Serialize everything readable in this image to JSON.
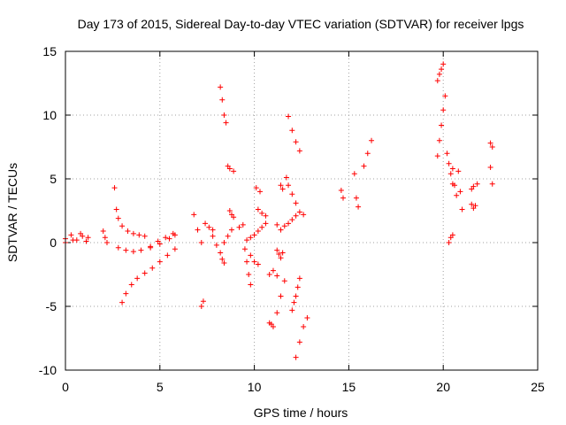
{
  "chart_data": {
    "type": "scatter",
    "title": "Day 173 of 2015, Sidereal Day-to-day VTEC variation (SDTVAR) for receiver lpgs",
    "xlabel": "GPS time / hours",
    "ylabel": "SDTVAR / TECUs",
    "xlim": [
      0,
      25
    ],
    "ylim": [
      -10,
      15
    ],
    "xticks": [
      0,
      5,
      10,
      15,
      20,
      25
    ],
    "yticks": [
      -10,
      -5,
      0,
      5,
      10,
      15
    ],
    "grid": true,
    "marker": "plus",
    "color": "#ff0000",
    "segments": [
      {
        "x": [
          0.0,
          0.3,
          0.6,
          0.9,
          1.2
        ],
        "y": [
          0.3,
          0.6,
          0.2,
          0.5,
          0.4
        ]
      },
      {
        "x": [
          0.0,
          0.4,
          0.8,
          1.1
        ],
        "y": [
          0.0,
          0.2,
          0.7,
          0.1
        ]
      },
      {
        "x": [
          2.0,
          2.1,
          2.2
        ],
        "y": [
          0.9,
          0.4,
          0.0
        ]
      },
      {
        "x": [
          2.6,
          2.7,
          2.8,
          3.0,
          3.3,
          3.6,
          3.9,
          4.2
        ],
        "y": [
          4.3,
          2.6,
          1.9,
          1.3,
          0.9,
          0.7,
          0.6,
          0.5
        ]
      },
      {
        "x": [
          2.8,
          3.2,
          3.6,
          4.0,
          4.5,
          5.0,
          5.5,
          5.8
        ],
        "y": [
          -0.4,
          -0.6,
          -0.7,
          -0.6,
          -0.4,
          -0.1,
          0.3,
          0.6
        ]
      },
      {
        "x": [
          3.0,
          3.2,
          3.5,
          3.8,
          4.2,
          4.6,
          5.0,
          5.4,
          5.8
        ],
        "y": [
          -4.7,
          -4.0,
          -3.3,
          -2.8,
          -2.4,
          -2.0,
          -1.5,
          -1.0,
          -0.5
        ]
      },
      {
        "x": [
          4.5,
          4.9,
          5.3,
          5.7
        ],
        "y": [
          -0.3,
          0.1,
          0.4,
          0.7
        ]
      },
      {
        "x": [
          6.8,
          7.0,
          7.2
        ],
        "y": [
          2.2,
          1.0,
          0.0
        ]
      },
      {
        "x": [
          7.2,
          7.3
        ],
        "y": [
          -5.0,
          -4.6
        ]
      },
      {
        "x": [
          7.4,
          7.6,
          7.8
        ],
        "y": [
          1.5,
          1.2,
          1.0
        ]
      },
      {
        "x": [
          7.8,
          8.0
        ],
        "y": [
          0.5,
          -0.2
        ]
      },
      {
        "x": [
          8.2,
          8.3,
          8.4,
          8.5
        ],
        "y": [
          12.2,
          11.2,
          10.0,
          9.4
        ]
      },
      {
        "x": [
          8.2,
          8.3,
          8.4
        ],
        "y": [
          -0.8,
          -1.3,
          -1.6
        ]
      },
      {
        "x": [
          8.4,
          8.6,
          8.8
        ],
        "y": [
          0.0,
          0.5,
          1.0
        ]
      },
      {
        "x": [
          8.6,
          8.7,
          8.9
        ],
        "y": [
          6.0,
          5.8,
          5.6
        ]
      },
      {
        "x": [
          8.7,
          8.8,
          8.9
        ],
        "y": [
          2.5,
          2.2,
          2.0
        ]
      },
      {
        "x": [
          9.2,
          9.4
        ],
        "y": [
          1.2,
          1.4
        ]
      },
      {
        "x": [
          9.5,
          9.6,
          9.7,
          9.8
        ],
        "y": [
          -0.5,
          -1.5,
          -2.5,
          -3.3
        ]
      },
      {
        "x": [
          9.6,
          9.8,
          10.0,
          10.2,
          10.4,
          10.6
        ],
        "y": [
          0.2,
          0.4,
          0.6,
          0.9,
          1.2,
          1.5
        ]
      },
      {
        "x": [
          9.8,
          10.0,
          10.2
        ],
        "y": [
          -1.0,
          -1.5,
          -1.7
        ]
      },
      {
        "x": [
          10.1,
          10.3
        ],
        "y": [
          4.3,
          4.0
        ]
      },
      {
        "x": [
          10.2,
          10.4,
          10.6
        ],
        "y": [
          2.6,
          2.3,
          2.1
        ]
      },
      {
        "x": [
          10.8,
          10.9
        ],
        "y": [
          -6.3,
          -6.4
        ]
      },
      {
        "x": [
          10.8,
          11.0,
          11.2
        ],
        "y": [
          -2.5,
          -2.2,
          -2.6
        ]
      },
      {
        "x": [
          11.0,
          11.2,
          11.4,
          11.6
        ],
        "y": [
          -6.6,
          -5.5,
          -4.2,
          -3.0
        ]
      },
      {
        "x": [
          11.2,
          11.3,
          11.4,
          11.5
        ],
        "y": [
          -0.6,
          -0.9,
          -1.2,
          -0.8
        ]
      },
      {
        "x": [
          11.2,
          11.4,
          11.6
        ],
        "y": [
          1.4,
          1.0,
          1.3
        ]
      },
      {
        "x": [
          11.4,
          11.5
        ],
        "y": [
          4.5,
          4.2
        ]
      },
      {
        "x": [
          11.7,
          11.8,
          12.0,
          12.2
        ],
        "y": [
          5.1,
          4.5,
          3.8,
          3.1
        ]
      },
      {
        "x": [
          11.8,
          12.0,
          12.2,
          12.4
        ],
        "y": [
          9.9,
          8.8,
          7.9,
          7.2
        ]
      },
      {
        "x": [
          11.8,
          12.0,
          12.2,
          12.4,
          12.6
        ],
        "y": [
          1.5,
          1.8,
          2.1,
          2.4,
          2.2
        ]
      },
      {
        "x": [
          12.0,
          12.1,
          12.2,
          12.3,
          12.4
        ],
        "y": [
          -5.3,
          -4.7,
          -4.2,
          -3.5,
          -2.8
        ]
      },
      {
        "x": [
          12.2,
          12.4,
          12.6,
          12.8
        ],
        "y": [
          -9.0,
          -7.8,
          -6.6,
          -5.9
        ]
      },
      {
        "x": [
          14.6,
          14.7
        ],
        "y": [
          4.1,
          3.5
        ]
      },
      {
        "x": [
          15.3,
          15.4,
          15.5
        ],
        "y": [
          5.4,
          3.5,
          2.8
        ]
      },
      {
        "x": [
          15.8,
          16.0,
          16.2
        ],
        "y": [
          6.0,
          7.0,
          8.0
        ]
      },
      {
        "x": [
          19.7,
          19.8,
          19.9,
          20.0
        ],
        "y": [
          12.7,
          13.2,
          13.6,
          14.0
        ]
      },
      {
        "x": [
          19.7,
          19.8,
          19.9,
          20.0,
          20.1
        ],
        "y": [
          6.8,
          8.0,
          9.2,
          10.4,
          11.5
        ]
      },
      {
        "x": [
          20.2,
          20.3,
          20.4,
          20.5
        ],
        "y": [
          7.0,
          6.2,
          5.4,
          4.6
        ]
      },
      {
        "x": [
          20.3,
          20.4,
          20.5
        ],
        "y": [
          0.0,
          0.4,
          0.6
        ]
      },
      {
        "x": [
          20.5,
          20.6,
          20.7
        ],
        "y": [
          5.8,
          4.5,
          3.7
        ]
      },
      {
        "x": [
          20.8,
          20.9,
          21.0
        ],
        "y": [
          5.6,
          4.0,
          2.6
        ]
      },
      {
        "x": [
          21.5,
          21.6,
          21.7
        ],
        "y": [
          3.0,
          2.7,
          2.9
        ]
      },
      {
        "x": [
          21.5,
          21.6,
          21.8
        ],
        "y": [
          4.2,
          4.4,
          4.6
        ]
      },
      {
        "x": [
          22.5,
          22.6
        ],
        "y": [
          7.8,
          7.5
        ]
      },
      {
        "x": [
          22.5,
          22.6
        ],
        "y": [
          5.9,
          4.6
        ]
      }
    ]
  }
}
